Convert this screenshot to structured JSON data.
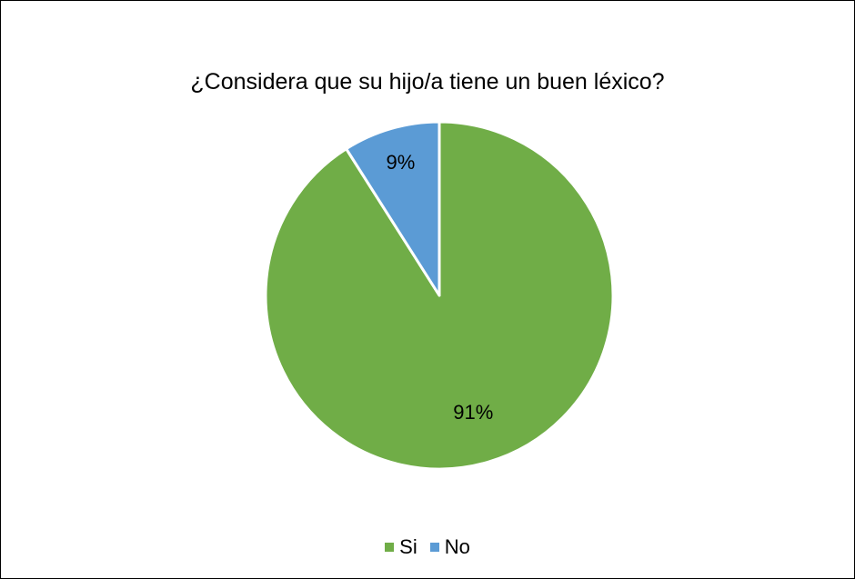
{
  "chart_data": {
    "type": "pie",
    "title": "¿Considera que su hijo/a tiene un buen léxico?",
    "slices": [
      {
        "label": "Si",
        "value": 91,
        "display": "91%",
        "color": "#70AD47"
      },
      {
        "label": "No",
        "value": 9,
        "display": "9%",
        "color": "#5B9BD5"
      }
    ],
    "legend_position": "bottom"
  }
}
